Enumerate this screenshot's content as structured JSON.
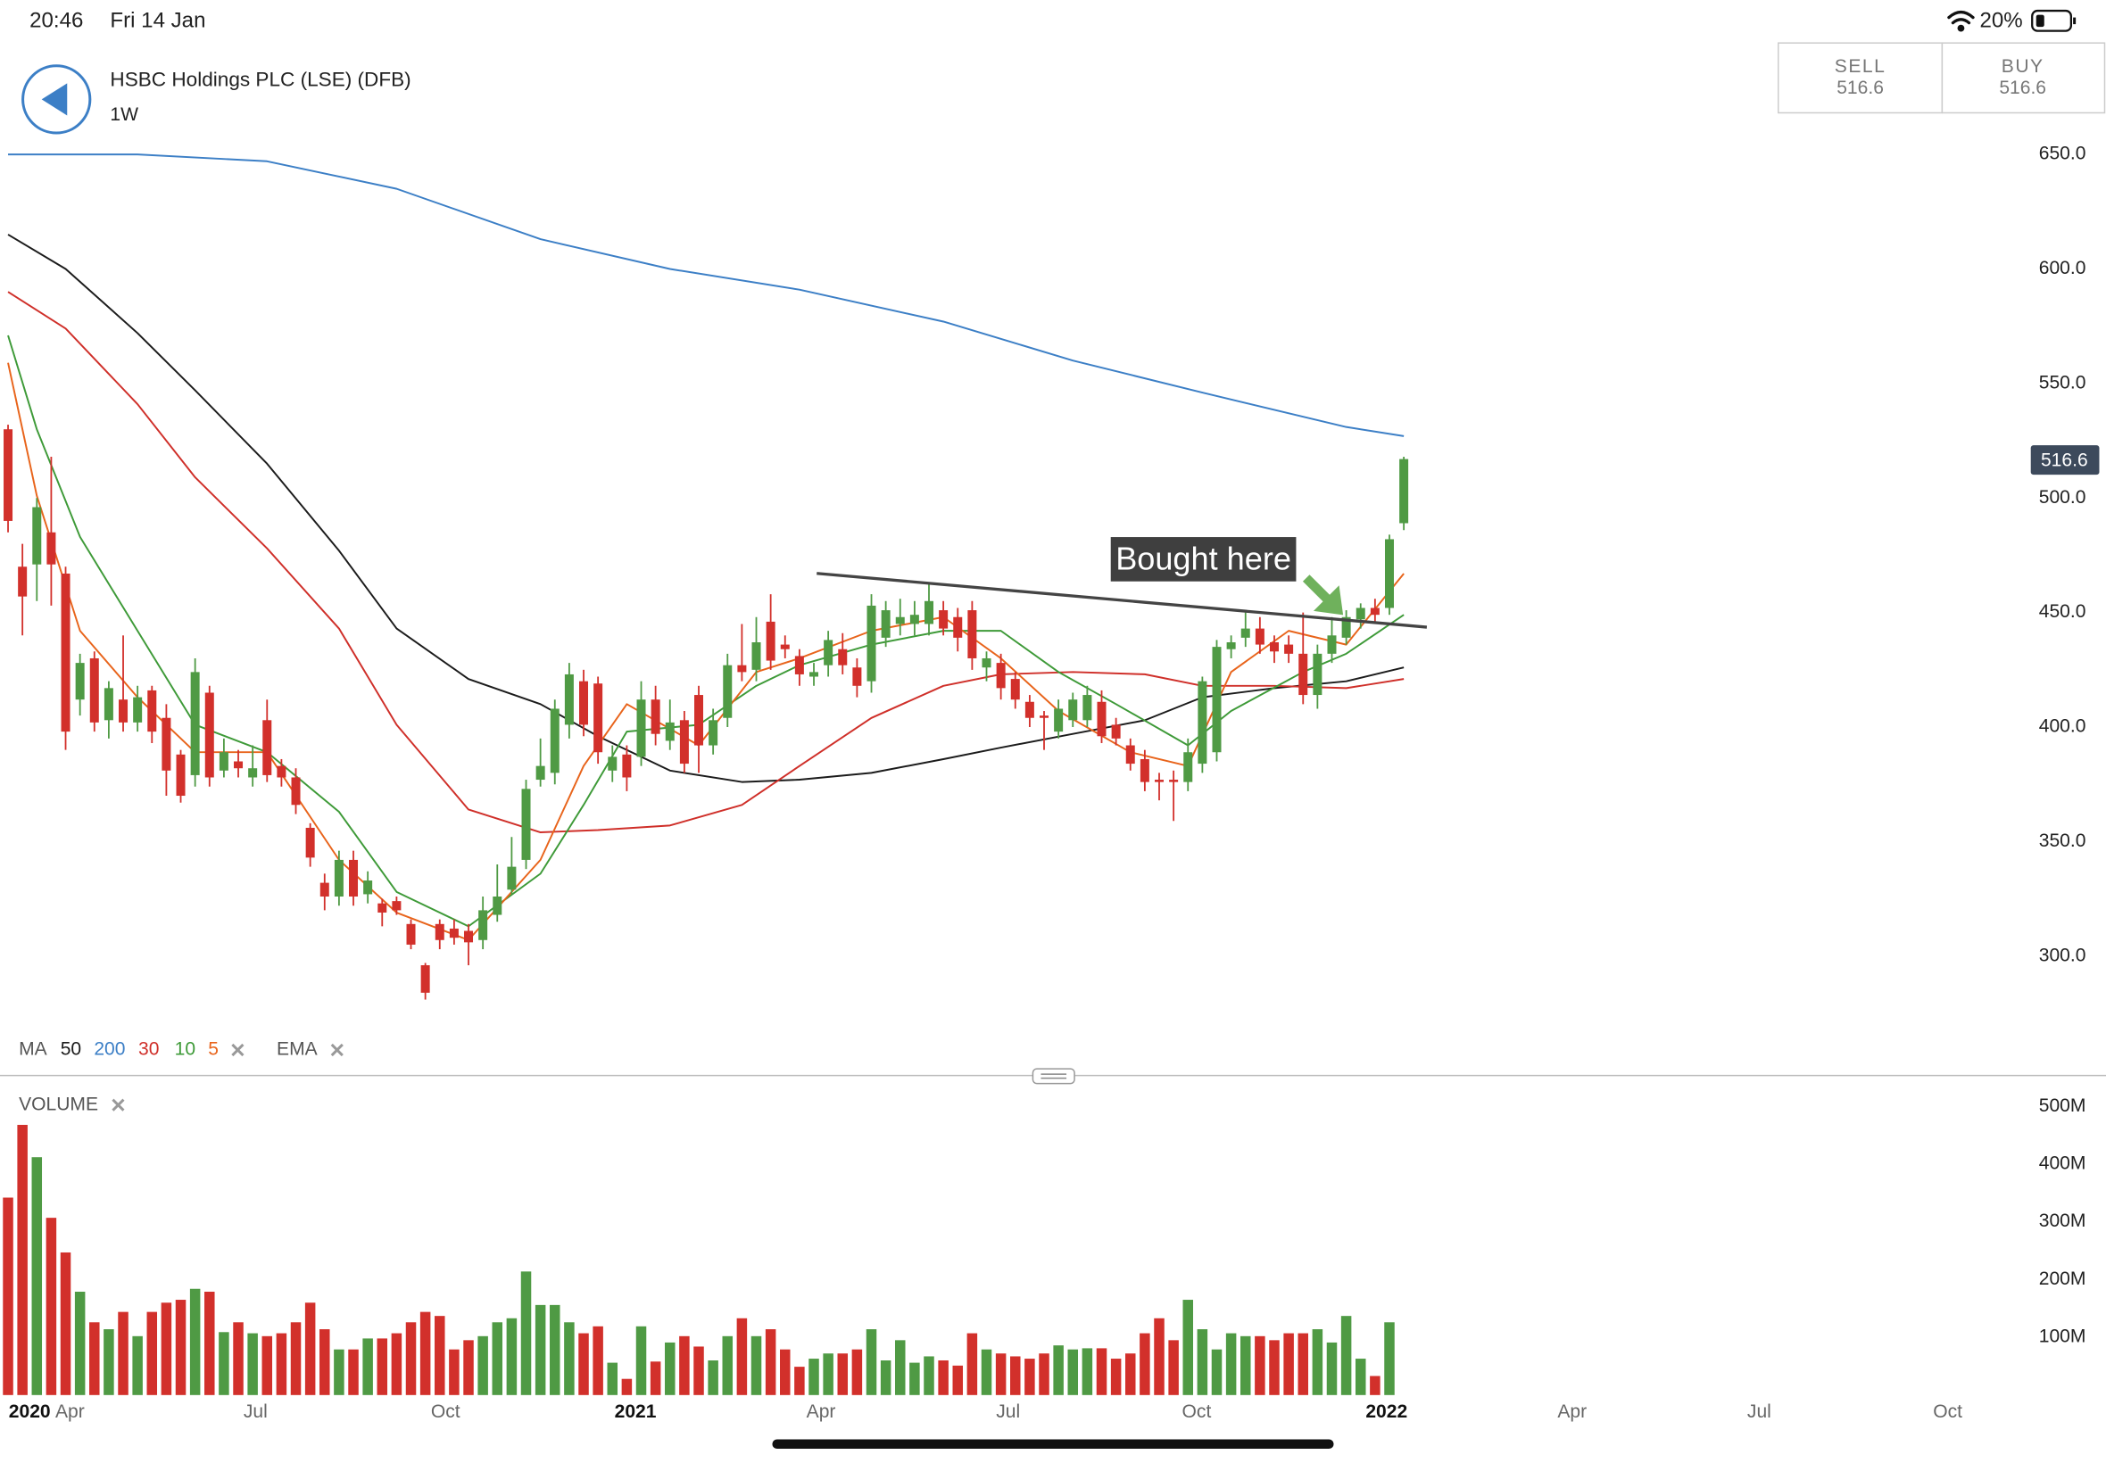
{
  "status_bar": {
    "time": "20:46",
    "date": "Fri 14 Jan",
    "battery": "20%"
  },
  "header": {
    "title": "HSBC Holdings PLC (LSE) (DFB)",
    "interval": "1W"
  },
  "trade_buttons": [
    {
      "label": "SELL",
      "price": 516.6
    },
    {
      "label": "BUY",
      "price": 516.6
    }
  ],
  "chart_data": [
    {
      "type": "candlestick",
      "up_color": "#4f9a44",
      "down_color": "#d2302b",
      "xlim": [
        -0.56,
        145.8
      ],
      "xticks": [
        {
          "value": 1.5,
          "label": "2020"
        },
        {
          "value": 4.3,
          "label": "Apr"
        },
        {
          "value": 17.2,
          "label": "Jul"
        },
        {
          "value": 30.4,
          "label": "Oct"
        },
        {
          "value": 43.6,
          "label": "2021"
        },
        {
          "value": 56.5,
          "label": "Apr"
        },
        {
          "value": 69.5,
          "label": "Jul"
        },
        {
          "value": 82.6,
          "label": "Oct"
        },
        {
          "value": 95.8,
          "label": "2022"
        },
        {
          "value": 108.7,
          "label": "Apr"
        },
        {
          "value": 121.7,
          "label": "Jul"
        },
        {
          "value": 134.8,
          "label": "Oct"
        }
      ],
      "ylim": [
        271.9,
        658.8
      ],
      "yticks": [
        {
          "value": 650,
          "label": "650.0"
        },
        {
          "value": 600,
          "label": "600.0"
        },
        {
          "value": 550,
          "label": "550.0"
        },
        {
          "value": 500,
          "label": "500.0"
        },
        {
          "value": 450,
          "label": "450.0"
        },
        {
          "value": 400,
          "label": "400.0"
        },
        {
          "value": 350,
          "label": "350.0"
        },
        {
          "value": 300,
          "label": "300.0"
        }
      ],
      "last_price": 516.6,
      "candles": {
        "open": [
          530,
          470,
          471,
          485,
          467,
          412,
          430,
          403,
          412,
          402,
          416,
          404,
          388,
          379,
          415,
          381,
          385,
          378,
          403,
          383,
          378,
          356,
          332,
          326,
          342,
          327,
          323,
          324,
          314,
          296,
          314,
          312,
          311,
          307,
          318,
          329,
          342,
          377,
          380,
          401,
          420,
          419,
          381,
          388,
          387,
          412,
          394,
          403,
          414,
          392,
          404,
          427,
          425,
          446,
          436,
          431,
          422,
          427,
          434,
          426,
          420,
          439,
          445,
          445,
          445,
          451,
          448,
          451,
          426,
          428,
          421,
          411,
          405,
          398,
          403,
          403,
          411,
          401,
          392,
          386,
          377,
          377,
          376,
          384,
          389,
          434,
          439,
          443,
          437,
          436,
          432,
          414,
          432,
          439,
          447,
          452,
          452,
          489
        ],
        "high": [
          532,
          480,
          500,
          518,
          470,
          432,
          433,
          420,
          440,
          418,
          418,
          410,
          390,
          430,
          418,
          395,
          390,
          392,
          412,
          386,
          382,
          358,
          336,
          346,
          346,
          337,
          325,
          326,
          316,
          297,
          316,
          316,
          314,
          326,
          340,
          352,
          377,
          395,
          412,
          428,
          425,
          422,
          392,
          392,
          420,
          418,
          412,
          407,
          418,
          408,
          432,
          445,
          448,
          458,
          440,
          434,
          428,
          442,
          441,
          430,
          458,
          455,
          456,
          455,
          463,
          455,
          452,
          455,
          433,
          432,
          424,
          414,
          407,
          412,
          415,
          418,
          416,
          404,
          395,
          390,
          380,
          381,
          395,
          422,
          438,
          440,
          450,
          448,
          440,
          440,
          450,
          436,
          448,
          451,
          454,
          456,
          484,
          518
        ],
        "low": [
          485,
          440,
          455,
          453,
          390,
          405,
          398,
          395,
          398,
          398,
          393,
          370,
          367,
          374,
          374,
          378,
          378,
          374,
          376,
          374,
          362,
          339,
          320,
          322,
          322,
          323,
          313,
          318,
          303,
          281,
          303,
          305,
          296,
          303,
          315,
          327,
          338,
          374,
          375,
          395,
          396,
          384,
          376,
          372,
          383,
          392,
          390,
          380,
          380,
          388,
          400,
          420,
          420,
          425,
          430,
          418,
          418,
          422,
          423,
          413,
          415,
          435,
          440,
          440,
          440,
          440,
          433,
          425,
          420,
          412,
          408,
          400,
          390,
          395,
          400,
          400,
          393,
          392,
          381,
          372,
          368,
          359,
          372,
          380,
          385,
          430,
          435,
          432,
          428,
          428,
          410,
          408,
          428,
          436,
          443,
          445,
          449,
          486
        ],
        "close": [
          490,
          457,
          496,
          471,
          398,
          428,
          402,
          417,
          402,
          413,
          398,
          381,
          370,
          424,
          378,
          389,
          382,
          382,
          379,
          378,
          366,
          343,
          326,
          342,
          326,
          333,
          319,
          320,
          305,
          284,
          307,
          308,
          306,
          320,
          326,
          339,
          373,
          383,
          408,
          423,
          401,
          389,
          387,
          378,
          412,
          397,
          402,
          384,
          392,
          403,
          427,
          424,
          437,
          429,
          434,
          423,
          424,
          438,
          427,
          418,
          453,
          451,
          448,
          449,
          455,
          443,
          439,
          430,
          430,
          417,
          412,
          404,
          404,
          408,
          412,
          414,
          396,
          395,
          384,
          376,
          376,
          376,
          389,
          420,
          435,
          437,
          443,
          436,
          433,
          432,
          414,
          432,
          440,
          448,
          452,
          449,
          482,
          517
        ]
      },
      "legend": {
        "groups": [
          "MA",
          "EMA"
        ]
      },
      "series": [
        {
          "name": "50",
          "color": "#1b1b1b",
          "x": [
            0,
            4,
            9,
            13,
            18,
            23,
            27,
            32,
            37,
            41,
            46,
            51,
            55,
            60,
            65,
            69,
            74,
            79,
            83,
            88,
            93,
            97
          ],
          "values": [
            615,
            600,
            572,
            547,
            515,
            477,
            443,
            421,
            410,
            396,
            381,
            376,
            377,
            380,
            386,
            391,
            397,
            403,
            413,
            417,
            420,
            426
          ]
        },
        {
          "name": "200",
          "color": "#3c7fc6",
          "x": [
            0,
            9,
            18,
            27,
            37,
            46,
            55,
            65,
            74,
            83,
            93,
            97
          ],
          "values": [
            650,
            650,
            647,
            635,
            613,
            600,
            591,
            577,
            560,
            546,
            531,
            527
          ]
        },
        {
          "name": "30",
          "color": "#cf2f29",
          "x": [
            0,
            4,
            9,
            13,
            18,
            23,
            27,
            32,
            37,
            41,
            46,
            51,
            55,
            60,
            65,
            69,
            74,
            79,
            83,
            88,
            93,
            97
          ],
          "values": [
            590,
            574,
            541,
            509,
            478,
            443,
            401,
            364,
            354,
            355,
            357,
            366,
            383,
            404,
            418,
            423,
            424,
            423,
            418,
            418,
            417,
            421
          ]
        },
        {
          "name": "10",
          "color": "#3e9a38",
          "x": [
            0,
            2,
            5,
            9,
            13,
            18,
            23,
            27,
            32,
            37,
            40,
            43,
            48,
            52,
            55,
            60,
            65,
            69,
            73,
            77,
            82,
            85,
            90,
            93,
            97
          ],
          "values": [
            571,
            530,
            483,
            442,
            401,
            389,
            363,
            328,
            313,
            336,
            366,
            398,
            401,
            418,
            427,
            436,
            442,
            442,
            424,
            410,
            392,
            407,
            424,
            432,
            449
          ]
        },
        {
          "name": "5",
          "color": "#e8641b",
          "x": [
            0,
            2,
            5,
            9,
            13,
            18,
            23,
            27,
            32,
            37,
            40,
            43,
            48,
            52,
            55,
            60,
            65,
            69,
            73,
            78,
            82,
            85,
            89,
            93,
            97
          ],
          "values": [
            559,
            501,
            442,
            413,
            389,
            389,
            342,
            319,
            307,
            342,
            383,
            410,
            392,
            424,
            430,
            442,
            448,
            430,
            407,
            389,
            383,
            424,
            442,
            436,
            467
          ]
        }
      ],
      "trendline": {
        "x": [
          56.2,
          98.6
        ],
        "values": [
          467.1,
          443.6
        ]
      },
      "annotations": [
        {
          "text": "Bought here"
        }
      ]
    },
    {
      "type": "bar",
      "title": "VOLUME",
      "ylim": [
        0,
        532.6
      ],
      "yticks": [
        {
          "value": 500,
          "label": "500M"
        },
        {
          "value": 400,
          "label": "400M"
        },
        {
          "value": 300,
          "label": "300M"
        },
        {
          "value": 200,
          "label": "200M"
        },
        {
          "value": 100,
          "label": "100M"
        }
      ],
      "values": [
        342,
        468,
        412,
        307,
        247,
        179,
        126,
        114,
        144,
        102,
        144,
        160,
        165,
        184,
        179,
        109,
        126,
        107,
        102,
        107,
        126,
        160,
        114,
        79,
        79,
        98,
        98,
        107,
        126,
        144,
        137,
        79,
        95,
        102,
        126,
        133,
        214,
        156,
        156,
        126,
        107,
        119,
        56,
        28,
        119,
        58,
        91,
        102,
        84,
        60,
        102,
        133,
        102,
        114,
        79,
        49,
        63,
        72,
        72,
        79,
        114,
        60,
        95,
        56,
        67,
        60,
        51,
        107,
        79,
        72,
        67,
        63,
        72,
        86,
        79,
        81,
        81,
        63,
        72,
        107,
        133,
        95,
        165,
        114,
        79,
        107,
        102,
        102,
        95,
        107,
        107,
        114,
        91,
        137,
        63,
        33,
        126,
        null
      ]
    }
  ]
}
